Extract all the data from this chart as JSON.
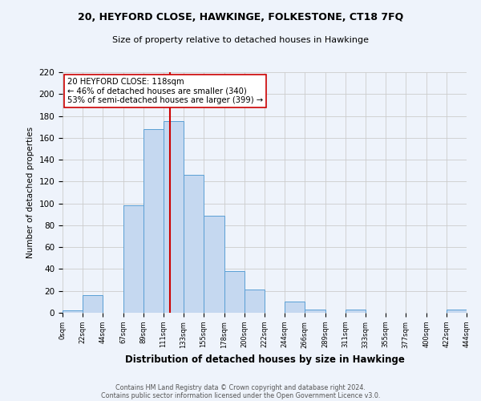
{
  "title": "20, HEYFORD CLOSE, HAWKINGE, FOLKESTONE, CT18 7FQ",
  "subtitle": "Size of property relative to detached houses in Hawkinge",
  "bar_edges": [
    0,
    22,
    44,
    67,
    89,
    111,
    133,
    155,
    178,
    200,
    222,
    244,
    266,
    289,
    311,
    333,
    355,
    377,
    400,
    422,
    444
  ],
  "bar_heights": [
    2,
    16,
    0,
    98,
    168,
    175,
    126,
    89,
    38,
    21,
    0,
    10,
    3,
    0,
    3,
    0,
    0,
    0,
    0,
    3
  ],
  "bar_color": "#c5d8f0",
  "bar_edgecolor": "#5a9fd4",
  "property_value": 118,
  "vline_color": "#cc0000",
  "annotation_text": "20 HEYFORD CLOSE: 118sqm\n← 46% of detached houses are smaller (340)\n53% of semi-detached houses are larger (399) →",
  "xlabel": "Distribution of detached houses by size in Hawkinge",
  "ylabel": "Number of detached properties",
  "ylim": [
    0,
    220
  ],
  "yticks": [
    0,
    20,
    40,
    60,
    80,
    100,
    120,
    140,
    160,
    180,
    200,
    220
  ],
  "xtick_labels": [
    "0sqm",
    "22sqm",
    "44sqm",
    "67sqm",
    "89sqm",
    "111sqm",
    "133sqm",
    "155sqm",
    "178sqm",
    "200sqm",
    "222sqm",
    "244sqm",
    "266sqm",
    "289sqm",
    "311sqm",
    "333sqm",
    "355sqm",
    "377sqm",
    "400sqm",
    "422sqm",
    "444sqm"
  ],
  "footnote1": "Contains HM Land Registry data © Crown copyright and database right 2024.",
  "footnote2": "Contains public sector information licensed under the Open Government Licence v3.0.",
  "grid_color": "#cccccc",
  "background_color": "#eef3fb"
}
